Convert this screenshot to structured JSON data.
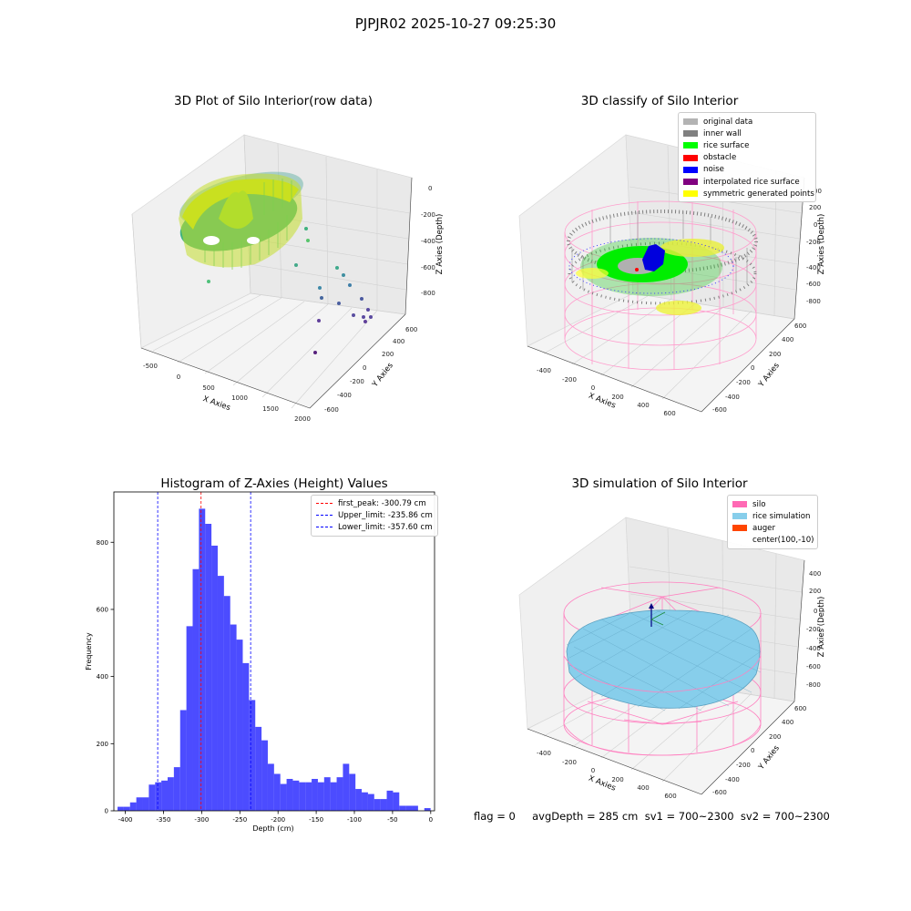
{
  "figure": {
    "suptitle": "PJPJR02 2025-10-27 09:25:30",
    "footer": "flag = 0     avgDepth = 285 cm  sv1 = 700~2300  sv2 = 700~2300"
  },
  "panels": {
    "raw": {
      "title": "3D Plot of Silo Interior(row data)",
      "xlabel": "X Axies",
      "ylabel": "Y Axies",
      "zlabel": "Z Axies (Depth)",
      "xticks": [
        "-500",
        "0",
        "500",
        "1000",
        "1500",
        "2000"
      ],
      "yticks": [
        "-600",
        "-400",
        "-200",
        "0",
        "200",
        "400",
        "600"
      ],
      "zticks": [
        "0",
        "-200",
        "-400",
        "-600",
        "-800"
      ]
    },
    "classify": {
      "title": "3D classify of Silo Interior",
      "xlabel": "X Axies",
      "ylabel": "Y Axies",
      "zlabel": "Z Axies (Depth)",
      "xticks": [
        "-400",
        "-200",
        "0",
        "200",
        "400",
        "600"
      ],
      "yticks": [
        "-600",
        "-400",
        "-200",
        "0",
        "200",
        "400",
        "600"
      ],
      "zticks": [
        "200",
        "0",
        "-200",
        "-400",
        "-600",
        "-800"
      ],
      "ztick_partial": "00",
      "legend": [
        {
          "label": "original data",
          "color": "#b3b3b3"
        },
        {
          "label": "inner wall",
          "color": "#808080"
        },
        {
          "label": "rice surface",
          "color": "#00ff00"
        },
        {
          "label": "obstacle",
          "color": "#ff0000"
        },
        {
          "label": "noise",
          "color": "#0000ff"
        },
        {
          "label": "interpolated rice surface",
          "color": "#800080"
        },
        {
          "label": "symmetric generated points",
          "color": "#ffff00"
        }
      ]
    },
    "simulation": {
      "title": "3D simulation of Silo Interior",
      "xlabel": "X Axies",
      "ylabel": "Y Axies",
      "zlabel": "Z Axies (Depth)",
      "xticks": [
        "-400",
        "-200",
        "0",
        "200",
        "400",
        "600"
      ],
      "yticks": [
        "-600",
        "-400",
        "-200",
        "0",
        "200",
        "400",
        "600"
      ],
      "zticks": [
        "400",
        "200",
        "0",
        "-200",
        "-400",
        "-600",
        "-800"
      ],
      "legend": [
        {
          "label": "silo",
          "color": "#ff69b4"
        },
        {
          "label": "rice simulation",
          "color": "#87ceeb"
        },
        {
          "label": "auger",
          "color": "#ff4500"
        },
        {
          "label": "center(100,-10)",
          "color": ""
        }
      ]
    }
  },
  "chart_data": [
    {
      "type": "histogram",
      "title": "Histogram of Z-Axies (Height) Values",
      "xlabel": "Depth (cm)",
      "ylabel": "Frequency",
      "xlim": [
        -415,
        5
      ],
      "ylim": [
        0,
        950
      ],
      "xticks": [
        -400,
        -350,
        -300,
        -250,
        -200,
        -150,
        -100,
        -50,
        0
      ],
      "yticks": [
        0,
        200,
        400,
        600,
        800
      ],
      "bar_color": "#0000ff",
      "bin_width": 8.2,
      "bin_starts": [
        -410.2,
        -402.0,
        -393.8,
        -385.6,
        -377.4,
        -369.2,
        -361.0,
        -352.8,
        -344.6,
        -336.4,
        -328.2,
        -320.0,
        -311.8,
        -303.6,
        -295.4,
        -287.2,
        -279.0,
        -270.8,
        -262.6,
        -254.4,
        -246.2,
        -238.0,
        -229.8,
        -221.6,
        -213.4,
        -205.2,
        -197.0,
        -188.8,
        -180.6,
        -172.4,
        -164.2,
        -156.0,
        -147.8,
        -139.6,
        -131.4,
        -123.2,
        -115.0,
        -106.8,
        -98.6,
        -90.4,
        -82.2,
        -74.0,
        -65.8,
        -57.6,
        -49.4,
        -41.2,
        -33.0,
        -24.8,
        -16.6,
        -8.4
      ],
      "counts": [
        12,
        12,
        25,
        40,
        40,
        78,
        85,
        90,
        100,
        130,
        300,
        550,
        720,
        900,
        855,
        790,
        700,
        640,
        555,
        510,
        440,
        330,
        250,
        210,
        140,
        110,
        80,
        95,
        90,
        85,
        85,
        95,
        85,
        100,
        85,
        100,
        140,
        110,
        65,
        55,
        50,
        35,
        35,
        60,
        55,
        15,
        15,
        15,
        0,
        8
      ],
      "lines": [
        {
          "label": "first_peak: -300.79 cm",
          "x": -300.79,
          "color": "#ff0000"
        },
        {
          "label": "Upper_limit: -235.86 cm",
          "x": -235.86,
          "color": "#0000ff"
        },
        {
          "label": "Lower_limit: -357.60 cm",
          "x": -357.6,
          "color": "#0000ff"
        }
      ],
      "legend_position": "upper right"
    }
  ]
}
